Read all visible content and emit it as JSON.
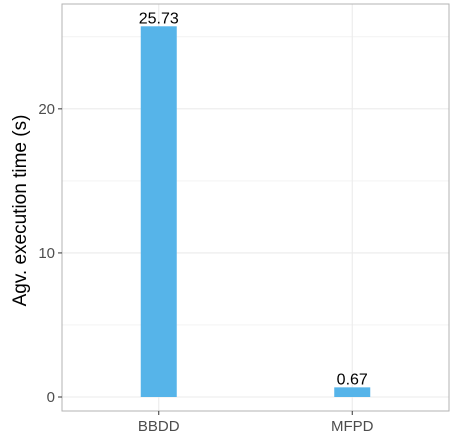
{
  "chart_data": {
    "type": "bar",
    "title": "",
    "xlabel": "",
    "ylabel": "Agv. execution time (s)",
    "categories": [
      "BBDD",
      "MFPD"
    ],
    "values": [
      25.73,
      0.67
    ],
    "data_labels": [
      "25.73",
      "0.67"
    ],
    "ylim": [
      0,
      27
    ],
    "yticks": [
      0,
      10,
      20
    ],
    "ytick_labels": [
      "0",
      "10",
      "20"
    ],
    "grid": true,
    "legend": "none",
    "colors": {
      "bar": "#56B4E9",
      "grid": "#EBEBEB",
      "panel_border": "#B3B3B3",
      "tick_text": "#4D4D4D"
    }
  }
}
